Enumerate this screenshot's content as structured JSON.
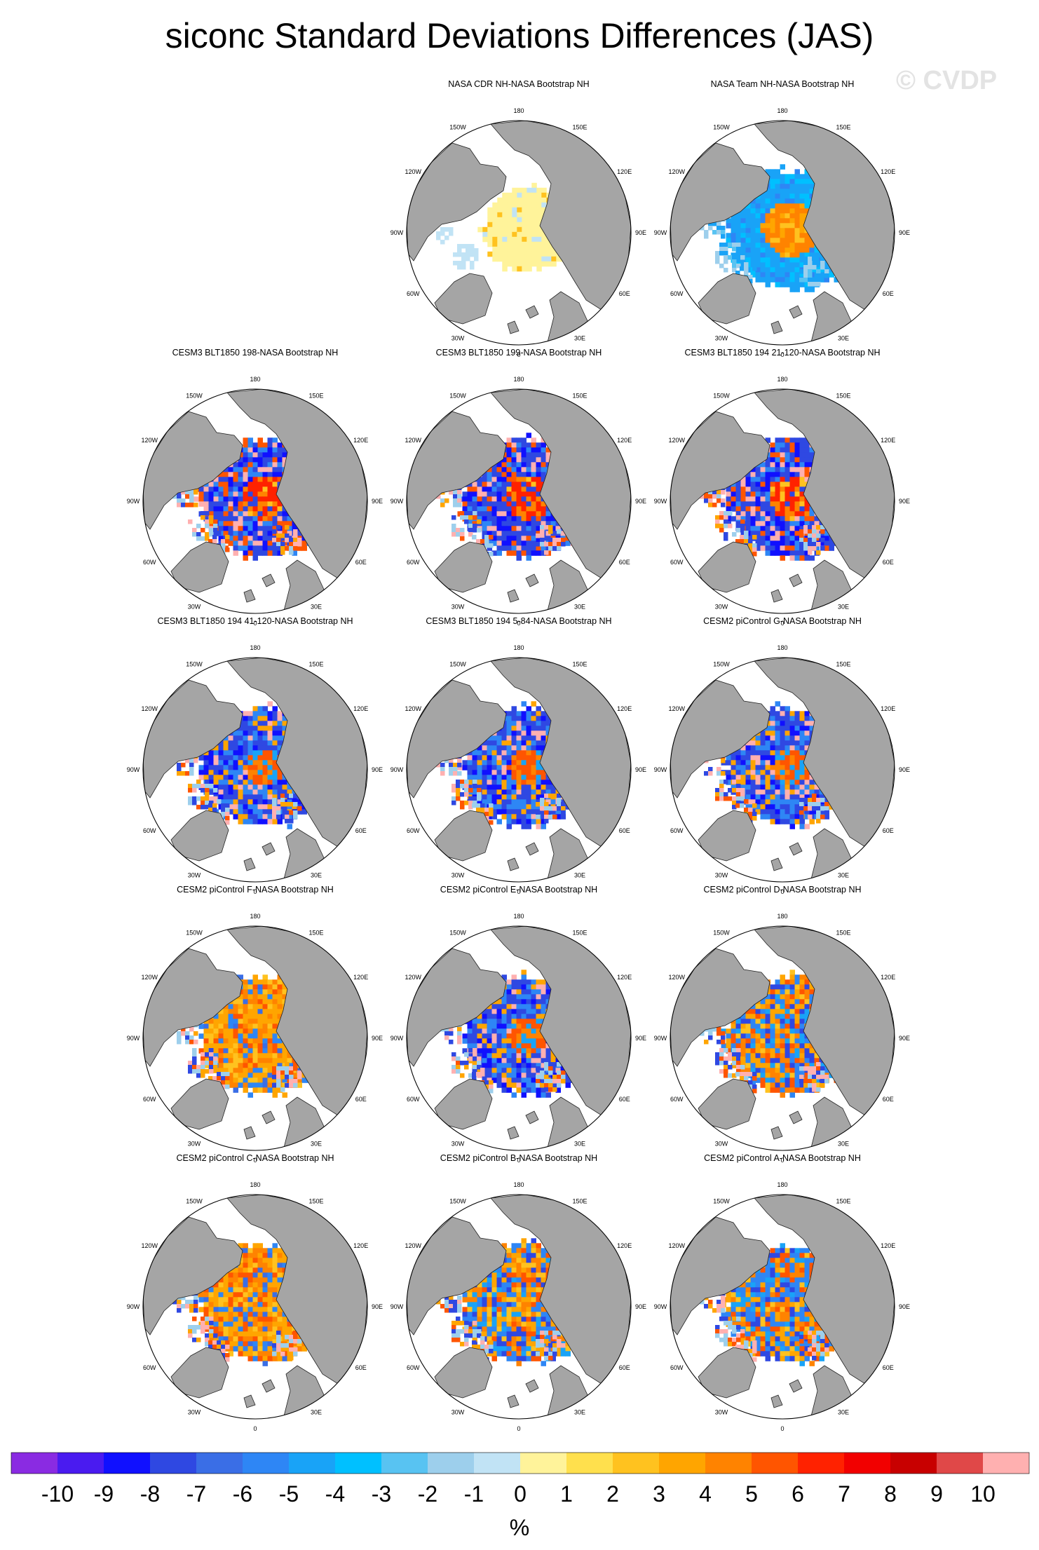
{
  "title": "siconc Standard Deviations Differences (JAS)",
  "watermark": "© CVDP",
  "chart_data": {
    "type": "heatmap",
    "projection": "north polar stereographic",
    "variable": "siconc",
    "season": "JAS",
    "lon_labels": [
      "180",
      "150E",
      "120E",
      "90E",
      "60E",
      "30E",
      "0",
      "30W",
      "60W",
      "90W",
      "120W",
      "150W"
    ],
    "panels": [
      {
        "title": "",
        "blank": true
      },
      {
        "title": "NASA CDR NH-NASA Bootstrap NH",
        "pattern": "cdr"
      },
      {
        "title": "NASA Team NH-NASA Bootstrap NH",
        "pattern": "team"
      },
      {
        "title": "CESM3 BLT1850 198-NASA Bootstrap NH",
        "pattern": "model_red"
      },
      {
        "title": "CESM3 BLT1850 199-NASA Bootstrap NH",
        "pattern": "model_red"
      },
      {
        "title": "CESM3 BLT1850 194 21-120-NASA Bootstrap NH",
        "pattern": "model_red"
      },
      {
        "title": "CESM3 BLT1850 194 41-120-NASA Bootstrap NH",
        "pattern": "model_blue"
      },
      {
        "title": "CESM3 BLT1850 194 5-84-NASA Bootstrap NH",
        "pattern": "model_blue"
      },
      {
        "title": "CESM2 piControl G-NASA Bootstrap NH",
        "pattern": "model_blue"
      },
      {
        "title": "CESM2 piControl F-NASA Bootstrap NH",
        "pattern": "model_orange"
      },
      {
        "title": "CESM2 piControl E-NASA Bootstrap NH",
        "pattern": "model_blue"
      },
      {
        "title": "CESM2 piControl D-NASA Bootstrap NH",
        "pattern": "model_mixed"
      },
      {
        "title": "CESM2 piControl C-NASA Bootstrap NH",
        "pattern": "model_orange"
      },
      {
        "title": "CESM2 piControl B-NASA Bootstrap NH",
        "pattern": "model_mixed"
      },
      {
        "title": "CESM2 piControl A-NASA Bootstrap NH",
        "pattern": "model_mixed"
      }
    ],
    "colorbar": {
      "label": "%",
      "ticks": [
        "-10",
        "-9",
        "-8",
        "-7",
        "-6",
        "-5",
        "-4",
        "-3",
        "-2",
        "-1",
        "0",
        "1",
        "2",
        "3",
        "4",
        "5",
        "6",
        "7",
        "8",
        "9",
        "10"
      ],
      "colors": [
        "#8a2be2",
        "#4a1bf0",
        "#1010ff",
        "#2f48e2",
        "#3a6ee6",
        "#2e86f5",
        "#19a3f7",
        "#00c0ff",
        "#58c3f2",
        "#9dcfec",
        "#c1e3f5",
        "#fff39a",
        "#ffe04d",
        "#ffc21f",
        "#ffa500",
        "#ff8300",
        "#ff5500",
        "#ff2200",
        "#f20000",
        "#c80000",
        "#e04848",
        "#ffb0b0"
      ]
    }
  }
}
